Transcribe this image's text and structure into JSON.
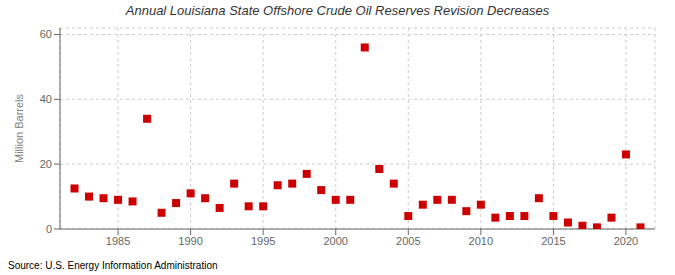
{
  "chart_data": {
    "type": "scatter",
    "title": "Annual Louisiana State Offshore Crude Oil Reserves Revision Decreases",
    "ylabel": "Million Barrels",
    "source": "Source: U.S. Energy Information Administration",
    "x": [
      1982,
      1983,
      1984,
      1985,
      1986,
      1987,
      1988,
      1989,
      1990,
      1991,
      1992,
      1993,
      1994,
      1995,
      1996,
      1997,
      1998,
      1999,
      2000,
      2001,
      2002,
      2003,
      2004,
      2005,
      2006,
      2007,
      2008,
      2009,
      2010,
      2011,
      2012,
      2013,
      2014,
      2015,
      2016,
      2017,
      2018,
      2019,
      2020,
      2021
    ],
    "values": [
      12.5,
      10.0,
      9.5,
      9.0,
      8.5,
      34.0,
      5.0,
      8.0,
      11.0,
      9.5,
      6.5,
      14.0,
      7.0,
      7.0,
      13.5,
      14.0,
      17.0,
      12.0,
      9.0,
      9.0,
      56.0,
      18.5,
      14.0,
      4.0,
      7.5,
      9.0,
      9.0,
      5.5,
      7.5,
      3.5,
      4.0,
      4.0,
      9.5,
      4.0,
      2.0,
      1.0,
      0.5,
      3.5,
      23.0,
      0.5
    ],
    "color": "#cc0000",
    "marker": "square",
    "xlim": [
      1981,
      2022
    ],
    "ylim": [
      0,
      62
    ],
    "xticks": [
      1985,
      1990,
      1995,
      2000,
      2005,
      2010,
      2015,
      2020
    ],
    "yticks": [
      0,
      20,
      40,
      60
    ],
    "grid": true
  }
}
